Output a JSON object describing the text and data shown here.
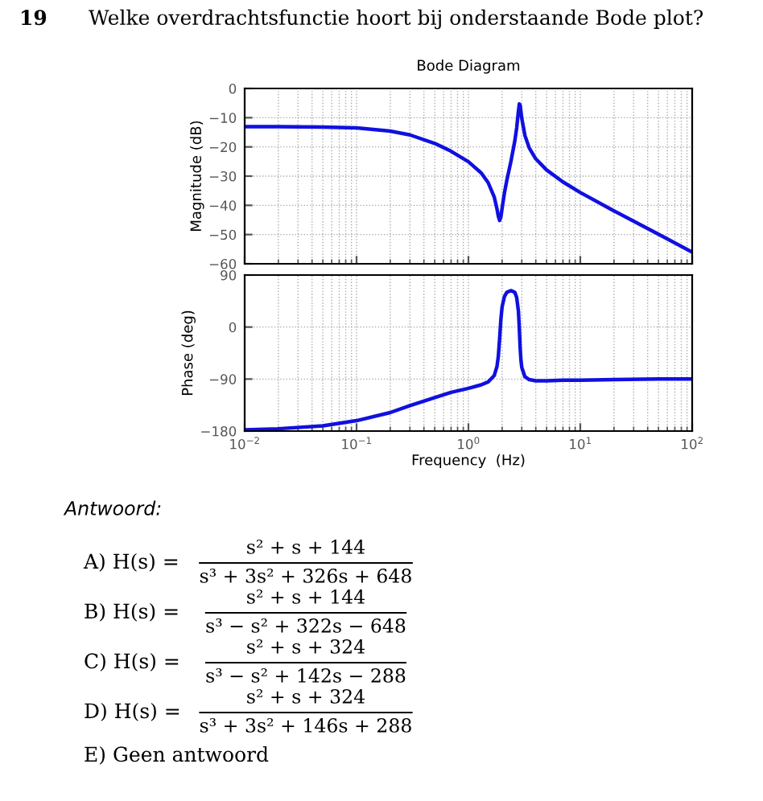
{
  "chart_data": [
    {
      "type": "line",
      "title": "Bode Diagram",
      "ylabel": "Magnitude (dB)",
      "log": "x",
      "grid": true,
      "tick_labels": "y",
      "annotations": [
        "19",
        "Welke overdrachtsfunctie hoort bij onderstaande Bode plot?"
      ],
      "x": [
        0.01,
        0.02,
        0.05,
        0.1,
        0.2,
        0.3,
        0.5,
        0.7,
        1,
        1.3,
        1.5,
        1.7,
        1.8,
        1.85,
        1.9,
        1.95,
        2.0,
        2.1,
        2.2,
        2.4,
        2.6,
        2.7,
        2.8,
        2.85,
        2.9,
        2.95,
        3.0,
        3.2,
        3.5,
        4,
        5,
        7,
        10,
        20,
        50,
        100
      ],
      "series": [
        {
          "color": "#1010e0",
          "values": [
            -13.1,
            -13.1,
            -13.2,
            -13.5,
            -14.6,
            -15.9,
            -18.8,
            -21.5,
            -25.1,
            -28.9,
            -32.2,
            -37.1,
            -41.2,
            -43.7,
            -45.2,
            -44.0,
            -41.0,
            -35.7,
            -31.6,
            -24.9,
            -17.9,
            -13.5,
            -7.7,
            -5.3,
            -5.7,
            -8.0,
            -10.3,
            -16.1,
            -20.4,
            -24.1,
            -27.9,
            -32.0,
            -35.6,
            -41.9,
            -49.9,
            -56.0
          ]
        }
      ],
      "xlim": [
        0.01,
        100
      ],
      "ylim": [
        -60,
        0
      ],
      "yticks": [
        -60,
        -50,
        -40,
        -30,
        -20,
        -10,
        0
      ],
      "xticks": [
        {
          "value": 0.01,
          "label": null
        },
        {
          "value": 0.1,
          "label": null
        },
        {
          "value": 1,
          "label": null
        },
        {
          "value": 10,
          "label": null
        },
        {
          "value": 100,
          "label": null
        }
      ]
    },
    {
      "type": "line",
      "xlabel": "Frequency  (Hz)",
      "ylabel": "Phase (deg)",
      "log": "x",
      "grid": true,
      "annotations": [
        "Antwoord:",
        "A) H(s) =",
        "s² + s + 144",
        "s³ + 3s² + 326s + 648",
        "B) H(s) =",
        "s² + s + 144",
        "s³ − s² + 322s − 648",
        "C) H(s) =",
        "s² + s + 324",
        "s³ − s² + 142s − 288",
        "D) H(s) =",
        "s² + s + 324",
        "s³ + 3s² + 146s + 288",
        "E) Geen antwoord"
      ],
      "x": [
        0.01,
        0.02,
        0.05,
        0.1,
        0.2,
        0.3,
        0.5,
        0.7,
        1,
        1.3,
        1.5,
        1.7,
        1.8,
        1.85,
        1.9,
        1.95,
        2.0,
        2.1,
        2.2,
        2.4,
        2.6,
        2.7,
        2.8,
        2.85,
        2.9,
        2.95,
        3.0,
        3.2,
        3.5,
        4,
        5,
        7,
        10,
        20,
        50,
        100
      ],
      "series": [
        {
          "color": "#1010e0",
          "values": [
            -178,
            -176,
            -171,
            -162,
            -148,
            -136,
            -122,
            -113,
            -106,
            -100,
            -95,
            -84,
            -68,
            -51,
            -20,
            13,
            35,
            53,
            60,
            63,
            60,
            51,
            27,
            -2,
            -36,
            -58,
            -70,
            -86,
            -91,
            -93,
            -93,
            -92,
            -92,
            -91,
            -90,
            -90
          ]
        }
      ],
      "xlim": [
        0.01,
        100
      ],
      "ylim": [
        -180,
        90
      ],
      "yticks": [
        -180,
        -90,
        0,
        90
      ],
      "xticks": [
        {
          "value": 0.01,
          "label": "10$^{−2}$"
        },
        {
          "value": 0.1,
          "label": "10$^{−1}$"
        },
        {
          "value": 1,
          "label": "10$^{0}$"
        },
        {
          "value": 10,
          "label": "10$^{1}$"
        },
        {
          "value": 100,
          "label": "10$^{2}$"
        }
      ]
    }
  ]
}
